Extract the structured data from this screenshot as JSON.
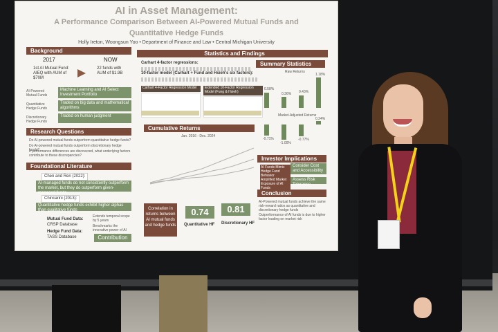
{
  "poster": {
    "title_line1": "AI in Asset Management:",
    "title_line2": "A Performance Comparison Between AI-Powered Mutual Funds and",
    "title_line3": "Quantitative Hedge Funds",
    "byline": "Holly Ireton, Woongsun Yoo • Department of Finance and Law • Central Michigan University",
    "background": {
      "header": "Background",
      "year_then": "2017",
      "year_now": "NOW",
      "then_text": "1st AI Mutual Fund: AIEQ with AUM of $70M",
      "now_text": "22 funds with AUM of $1.9B",
      "rows": [
        {
          "label": "AI-Powered Mutual Funds",
          "text": "Machine Learning and AI Select Investment Portfolio"
        },
        {
          "label": "Quantitative Hedge Funds",
          "text": "Traded on big data and mathematical algorithms"
        },
        {
          "label": "Discretionary Hedge Funds",
          "text": "Traded on human judgment"
        }
      ]
    },
    "research": {
      "header": "Research Questions",
      "q1": "Do AI-powered mutual funds outperform quantitative hedge funds?",
      "q2": "Do AI-powered mutual funds outperform discretionary hedge funds?",
      "q3": "If performance differences are discovered, what underlying factors contribute to these discrepancies?"
    },
    "literature": {
      "header": "Foundational Literature",
      "ref1": "Chen and Ren (2022):",
      "ref1_text": "AI-managed funds do not consistently outperform the market, but they do outperform given-managed funds",
      "ref2": "Chincarini (2013):",
      "ref2_text": "Quantitative hedge funds exhibit higher alphas than qualitative funds"
    },
    "data": {
      "mf_label": "Mutual Fund Data:",
      "mf_src": "CRSP Database",
      "hf_label": "Hedge Fund Data:",
      "hf_src": "TASS Database",
      "note1": "Extends temporal scope by 5 years",
      "note2": "Benchmarks the innovative power of AI",
      "contribution": "Contribution"
    },
    "stats": {
      "header": "Statistics and Findings",
      "carhart": "Carhart 4-factor regressions:",
      "tenfactor": "10-factor model (Carhart + Fund and Hsieh's six factors):",
      "t1_title": "Carhart 4-Factor Regression Model",
      "t2_title": "Extended 10-Factor Regression Model (Fung & Hsieh)",
      "cum_header": "Cumulative Returns",
      "cum_range": "Jan. 2016 - Dec. 2024",
      "corr_text": "Correlation in returns between AI mutual funds and hedge funds",
      "corr_quant": "0.74",
      "corr_quant_label": "Quantitative HF",
      "corr_disc": "0.81",
      "corr_disc_label": "Discretionary HF"
    },
    "summary": {
      "header": "Summary Statistics",
      "raw_title": "Raw Returns",
      "risk_title": "Market-Adjusted Returns",
      "raw_vals": [
        "0.58%",
        "0.36%",
        "0.43%",
        "1.18%"
      ],
      "risk_vals": [
        "-0.71%",
        "-1.00%",
        "-0.77%",
        "0.24%"
      ]
    },
    "investor": {
      "header": "Investor Implications",
      "row1_left": "AI Funds Mimic Hedge Fund Behavior",
      "row1_right": "Consider Cost and Accessibility",
      "row2_left": "Amplified Market Exposure of AI Funds",
      "row2_right": "Assess Risk Tolerance"
    },
    "conclusion": {
      "header": "Conclusion",
      "line1": "AI-Powered mutual funds achieve the same risk-reward ratios as quantitative and discretionary hedge funds",
      "line2": "Outperformance of AI funds is due to higher factor loading on market risk"
    }
  },
  "colors": {
    "poster_bg": "#f6f5f1",
    "header_brown": "#7a4a3a",
    "accent_green": "#7d936b",
    "blazer": "#111113",
    "shirt": "#8a2a3a",
    "lanyard": "#f2d21a"
  }
}
